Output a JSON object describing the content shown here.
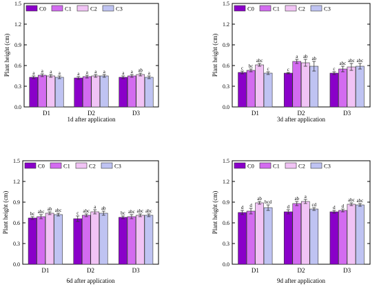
{
  "colors": {
    "C0": "#8a00c9",
    "C1": "#d36bf0",
    "C2": "#f1c3f5",
    "C3": "#bfc3f2",
    "error_bar": "#333333",
    "axis": "#000000"
  },
  "legend_labels": [
    "C0",
    "C1",
    "C2",
    "C3"
  ],
  "chart_data": [
    {
      "type": "bar",
      "xlabel": "1d after application",
      "ylabel": "Plant height (cm)",
      "ylim": [
        0.0,
        1.5
      ],
      "yticks": [
        "0.0",
        "0.3",
        "0.6",
        "0.9",
        "1.2",
        "1.5"
      ],
      "categories": [
        "D1",
        "D2",
        "D3"
      ],
      "legend": "top-left",
      "grid": false,
      "series": [
        {
          "name": "C0",
          "values": [
            0.43,
            0.42,
            0.43
          ],
          "errors": [
            0.02,
            0.02,
            0.02
          ],
          "labels": [
            "a",
            "a",
            "a"
          ]
        },
        {
          "name": "C1",
          "values": [
            0.46,
            0.44,
            0.45
          ],
          "errors": [
            0.02,
            0.02,
            0.02
          ],
          "labels": [
            "a",
            "a",
            "a"
          ]
        },
        {
          "name": "C2",
          "values": [
            0.45,
            0.45,
            0.47
          ],
          "errors": [
            0.02,
            0.02,
            0.02
          ],
          "labels": [
            "a",
            "a",
            "ab"
          ]
        },
        {
          "name": "C3",
          "values": [
            0.43,
            0.45,
            0.43
          ],
          "errors": [
            0.02,
            0.02,
            0.02
          ],
          "labels": [
            "a",
            "a",
            "a"
          ]
        }
      ]
    },
    {
      "type": "bar",
      "xlabel": "3d after application",
      "ylabel": "Plant height (cm)",
      "ylim": [
        0.0,
        1.5
      ],
      "yticks": [
        "0.0",
        "0.3",
        "0.6",
        "0.9",
        "1.2",
        "1.5"
      ],
      "categories": [
        "D1",
        "D2",
        "D3"
      ],
      "legend": "top-left",
      "grid": false,
      "series": [
        {
          "name": "C0",
          "values": [
            0.5,
            0.49,
            0.49
          ],
          "errors": [
            0.02,
            0.01,
            0.02
          ],
          "labels": [
            "c",
            "c",
            "c"
          ]
        },
        {
          "name": "C1",
          "values": [
            0.53,
            0.66,
            0.55
          ],
          "errors": [
            0.02,
            0.03,
            0.04
          ],
          "labels": [
            "bc",
            "a",
            "abc"
          ]
        },
        {
          "name": "C2",
          "values": [
            0.61,
            0.64,
            0.58
          ],
          "errors": [
            0.02,
            0.05,
            0.05
          ],
          "labels": [
            "abc",
            "ab",
            "abc"
          ]
        },
        {
          "name": "C3",
          "values": [
            0.49,
            0.59,
            0.59
          ],
          "errors": [
            0.02,
            0.07,
            0.04
          ],
          "labels": [
            "c",
            "ab",
            "abc"
          ]
        }
      ]
    },
    {
      "type": "bar",
      "xlabel": "6d after application",
      "ylabel": "Plant height (cm)",
      "ylim": [
        0.0,
        1.5
      ],
      "yticks": [
        "0.0",
        "0.3",
        "0.6",
        "0.9",
        "1.2",
        "1.5"
      ],
      "categories": [
        "D1",
        "D2",
        "D3"
      ],
      "legend": "top-left",
      "grid": false,
      "series": [
        {
          "name": "C0",
          "values": [
            0.67,
            0.66,
            0.68
          ],
          "errors": [
            0.02,
            0.04,
            0.02
          ],
          "labels": [
            "bc",
            "c",
            "bc"
          ]
        },
        {
          "name": "C1",
          "values": [
            0.69,
            0.71,
            0.69
          ],
          "errors": [
            0.03,
            0.02,
            0.03
          ],
          "labels": [
            "abc",
            "abc",
            "abc"
          ]
        },
        {
          "name": "C2",
          "values": [
            0.74,
            0.76,
            0.71
          ],
          "errors": [
            0.02,
            0.03,
            0.02
          ],
          "labels": [
            "ab",
            "a",
            "abc"
          ]
        },
        {
          "name": "C3",
          "values": [
            0.72,
            0.74,
            0.71
          ],
          "errors": [
            0.02,
            0.03,
            0.02
          ],
          "labels": [
            "abc",
            "ab",
            "abc"
          ]
        }
      ]
    },
    {
      "type": "bar",
      "xlabel": "9d after application",
      "ylabel": "Plant height (cm)",
      "ylim": [
        0.0,
        1.5
      ],
      "yticks": [
        "0.0",
        "0.3",
        "0.6",
        "0.9",
        "1.2",
        "1.5"
      ],
      "categories": [
        "D1",
        "D2",
        "D3"
      ],
      "legend": "top-left",
      "grid": false,
      "series": [
        {
          "name": "C0",
          "values": [
            0.75,
            0.76,
            0.76
          ],
          "errors": [
            0.03,
            0.03,
            0.02
          ],
          "labels": [
            "d",
            "d",
            "d"
          ]
        },
        {
          "name": "C1",
          "values": [
            0.77,
            0.88,
            0.78
          ],
          "errors": [
            0.04,
            0.03,
            0.02
          ],
          "labels": [
            "d",
            "ab",
            "d"
          ]
        },
        {
          "name": "C2",
          "values": [
            0.89,
            0.91,
            0.87
          ],
          "errors": [
            0.02,
            0.03,
            0.02
          ],
          "labels": [
            "ab",
            "a",
            "abc"
          ]
        },
        {
          "name": "C3",
          "values": [
            0.82,
            0.8,
            0.86
          ],
          "errors": [
            0.04,
            0.02,
            0.02
          ],
          "labels": [
            "bcd",
            "cd",
            "abc"
          ]
        }
      ]
    }
  ]
}
